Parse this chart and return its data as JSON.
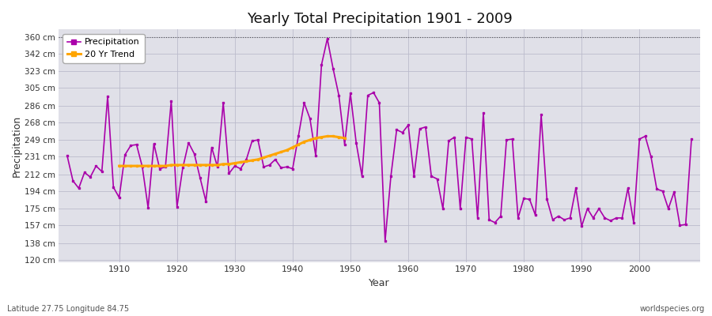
{
  "title": "Yearly Total Precipitation 1901 - 2009",
  "xlabel": "Year",
  "ylabel": "Precipitation",
  "footnote_left": "Latitude 27.75 Longitude 84.75",
  "footnote_right": "worldspecies.org",
  "legend_items": [
    "Precipitation",
    "20 Yr Trend"
  ],
  "precip_color": "#aa00aa",
  "trend_color": "#FFA500",
  "fig_bg_color": "#ffffff",
  "plot_bg_color": "#e0e0e8",
  "ytick_labels": [
    "120 cm",
    "138 cm",
    "157 cm",
    "175 cm",
    "194 cm",
    "212 cm",
    "231 cm",
    "249 cm",
    "268 cm",
    "286 cm",
    "305 cm",
    "323 cm",
    "342 cm",
    "360 cm"
  ],
  "ytick_values": [
    120,
    138,
    157,
    175,
    194,
    212,
    231,
    249,
    268,
    286,
    305,
    323,
    342,
    360
  ],
  "ylim": [
    117,
    368
  ],
  "xlim": [
    1899.5,
    2010.5
  ],
  "xticks": [
    1910,
    1920,
    1930,
    1940,
    1950,
    1960,
    1970,
    1980,
    1990,
    2000
  ],
  "years": [
    1901,
    1902,
    1903,
    1904,
    1905,
    1906,
    1907,
    1908,
    1909,
    1910,
    1911,
    1912,
    1913,
    1914,
    1915,
    1916,
    1917,
    1918,
    1919,
    1920,
    1921,
    1922,
    1923,
    1924,
    1925,
    1926,
    1927,
    1928,
    1929,
    1930,
    1931,
    1932,
    1933,
    1934,
    1935,
    1936,
    1937,
    1938,
    1939,
    1940,
    1941,
    1942,
    1943,
    1944,
    1945,
    1946,
    1947,
    1948,
    1949,
    1950,
    1951,
    1952,
    1953,
    1954,
    1955,
    1956,
    1957,
    1958,
    1959,
    1960,
    1961,
    1962,
    1963,
    1964,
    1965,
    1966,
    1967,
    1968,
    1969,
    1970,
    1971,
    1972,
    1973,
    1974,
    1975,
    1976,
    1977,
    1978,
    1979,
    1980,
    1981,
    1982,
    1983,
    1984,
    1985,
    1986,
    1987,
    1988,
    1989,
    1990,
    1991,
    1992,
    1993,
    1994,
    1995,
    1996,
    1997,
    1998,
    1999,
    2000,
    2001,
    2002,
    2003,
    2004,
    2005,
    2006,
    2007,
    2008,
    2009
  ],
  "precip": [
    232,
    205,
    197,
    214,
    209,
    221,
    215,
    296,
    198,
    187,
    233,
    243,
    244,
    220,
    176,
    245,
    218,
    220,
    291,
    177,
    219,
    246,
    234,
    208,
    183,
    241,
    220,
    289,
    213,
    221,
    218,
    228,
    248,
    249,
    220,
    222,
    228,
    219,
    220,
    218,
    253,
    289,
    272,
    232,
    330,
    358,
    326,
    297,
    244,
    299,
    246,
    210,
    297,
    300,
    289,
    140,
    210,
    260,
    257,
    265,
    210,
    261,
    263,
    210,
    207,
    175,
    248,
    252,
    175,
    252,
    250,
    165,
    278,
    163,
    160,
    167,
    249,
    250,
    165,
    186,
    185,
    168,
    276,
    185,
    163,
    167,
    163,
    165,
    197,
    156,
    175,
    165,
    175,
    165,
    162,
    165,
    165,
    197,
    160,
    250,
    253,
    231,
    196,
    194,
    175,
    193,
    157,
    158,
    250
  ],
  "trend_years": [
    1910,
    1911,
    1912,
    1913,
    1914,
    1915,
    1916,
    1917,
    1918,
    1919,
    1920,
    1921,
    1922,
    1923,
    1924,
    1925,
    1926,
    1927,
    1928,
    1929,
    1930,
    1931,
    1932,
    1933,
    1934,
    1935,
    1936,
    1937,
    1938,
    1939,
    1940,
    1941,
    1942,
    1943,
    1944,
    1945,
    1946,
    1947,
    1948,
    1949
  ],
  "trend": [
    221,
    221,
    221,
    221,
    221,
    221,
    221,
    221,
    221,
    222,
    222,
    222,
    222,
    222,
    222,
    222,
    222,
    222,
    223,
    223,
    224,
    225,
    226,
    227,
    228,
    230,
    232,
    234,
    236,
    238,
    241,
    244,
    247,
    249,
    251,
    252,
    253,
    253,
    252,
    251
  ]
}
